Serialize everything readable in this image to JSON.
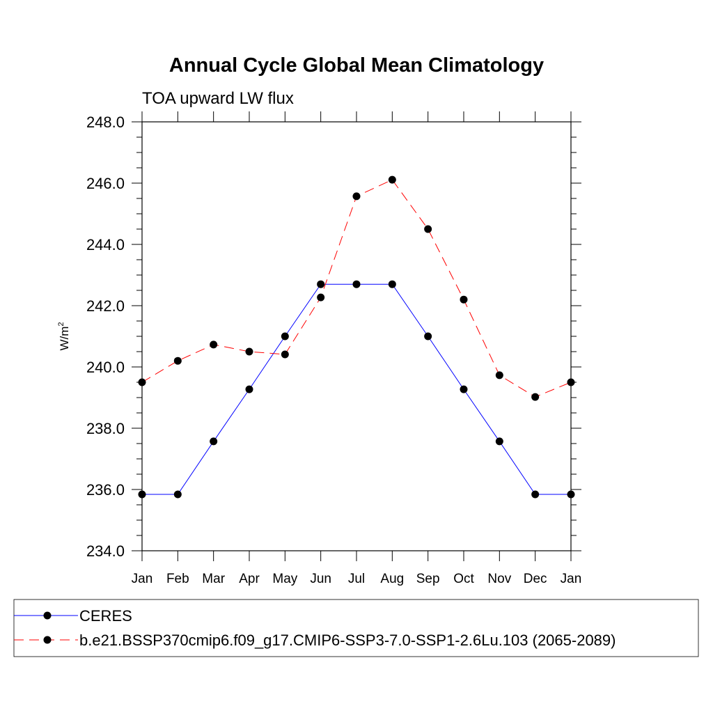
{
  "chart_data": {
    "type": "line",
    "title": "Annual Cycle Global Mean Climatology",
    "subtitle": "TOA upward LW flux",
    "ylabel": "W/m",
    "ylabel_sup": "2",
    "xlabel": "",
    "categories": [
      "Jan",
      "Feb",
      "Mar",
      "Apr",
      "May",
      "Jun",
      "Jul",
      "Aug",
      "Sep",
      "Oct",
      "Nov",
      "Dec",
      "Jan"
    ],
    "ylim": [
      234.0,
      248.0
    ],
    "yticks": [
      "234.0",
      "236.0",
      "238.0",
      "240.0",
      "242.0",
      "244.0",
      "246.0",
      "248.0"
    ],
    "grid": false,
    "legend_placement": "bottom",
    "series": [
      {
        "name": "CERES",
        "color": "#0000ff",
        "dash": "solid",
        "values": [
          235.84,
          235.84,
          237.57,
          239.27,
          241.0,
          242.7,
          242.7,
          242.7,
          241.0,
          239.27,
          237.57,
          235.84,
          235.84
        ]
      },
      {
        "name": "b.e21.BSSP370cmip6.f09_g17.CMIP6-SSP3-7.0-SSP1-2.6Lu.103 (2065-2089)",
        "color": "#ff0000",
        "dash": "dashed",
        "values": [
          239.5,
          240.2,
          240.73,
          240.5,
          240.41,
          242.27,
          245.57,
          246.11,
          244.5,
          242.2,
          239.73,
          239.02,
          239.5
        ]
      }
    ]
  }
}
